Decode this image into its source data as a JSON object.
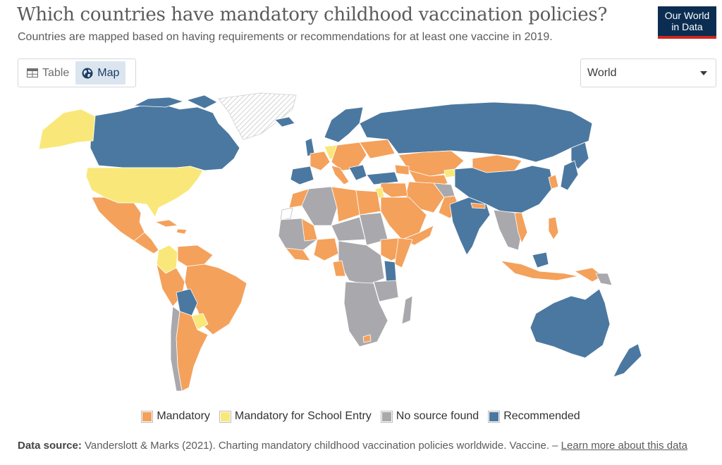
{
  "header": {
    "title": "Which countries have mandatory childhood vaccination policies?",
    "subtitle": "Countries are mapped based on having requirements or recommendations for at least one vaccine in 2019."
  },
  "logo": {
    "line1": "Our World",
    "line2": "in Data",
    "colors": {
      "bg": "#0b2d52",
      "bar": "#ce261e"
    }
  },
  "tabs": [
    {
      "label": "Table",
      "icon": "table-icon",
      "active": false
    },
    {
      "label": "Map",
      "icon": "globe-icon",
      "active": true
    }
  ],
  "region_select": {
    "value": "World"
  },
  "legend": [
    {
      "label": "Mandatory",
      "color": "#f4a15c"
    },
    {
      "label": "Mandatory for School Entry",
      "color": "#f9e879"
    },
    {
      "label": "No source found",
      "color": "#a9a9ad"
    },
    {
      "label": "Recommended",
      "color": "#4b78a0"
    }
  ],
  "map": {
    "no_data_color": "#e8e8e8",
    "regions": [
      {
        "category": "Recommended",
        "color": "#4b78a0",
        "examples": [
          "Canada",
          "Russia",
          "China",
          "India",
          "Australia",
          "Bolivia",
          "Kenya",
          "Greenland"
        ]
      },
      {
        "category": "Mandatory",
        "color": "#f4a15c",
        "examples": [
          "Brazil",
          "Argentina",
          "Mexico",
          "Peru",
          "Kazakhstan",
          "Mongolia",
          "Iran",
          "Indonesia",
          "Libya",
          "Egypt"
        ]
      },
      {
        "category": "Mandatory for School Entry",
        "color": "#f9e879",
        "examples": [
          "United States",
          "Alaska",
          "Colombia",
          "Germany",
          "Paraguay"
        ]
      },
      {
        "category": "No source found",
        "color": "#a9a9ad",
        "examples": [
          "Algeria",
          "Angola",
          "Namibia",
          "Dem. Rep. Congo",
          "Botswana",
          "Madagascar"
        ]
      }
    ]
  },
  "footer": {
    "source_label": "Data source:",
    "source_text": " Vanderslott & Marks (2021). Charting mandatory childhood vaccination policies worldwide. Vaccine. – ",
    "link_text": "Learn more about this data"
  }
}
